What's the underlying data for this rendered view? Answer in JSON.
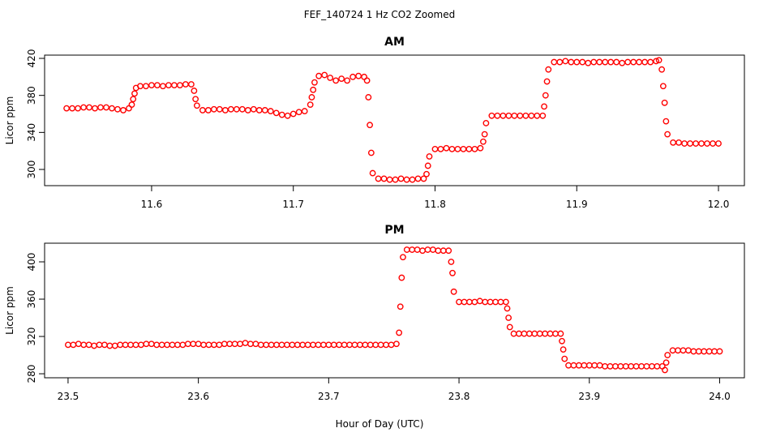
{
  "title": "FEF_140724  1 Hz CO2 Zoomed",
  "x_label": "Hour of Day (UTC)",
  "chart_data": [
    {
      "type": "scatter",
      "title": "AM",
      "y_label": "Licor ppm",
      "color": "#ff0000",
      "xlim": [
        11.5245,
        12.0183
      ],
      "ylim": [
        282.5,
        423.5
      ],
      "xticks": [
        11.6,
        11.7,
        11.8,
        11.9,
        {
          "value": 12,
          "label": "12.0"
        }
      ],
      "yticks": [
        300,
        340,
        380,
        420
      ],
      "x": [
        11.54,
        11.544,
        11.548,
        11.552,
        11.556,
        11.56,
        11.564,
        11.568,
        11.572,
        11.576,
        11.58,
        11.584,
        11.586,
        11.587,
        11.588,
        11.589,
        11.592,
        11.596,
        11.6,
        11.604,
        11.608,
        11.612,
        11.616,
        11.62,
        11.624,
        11.628,
        11.63,
        11.631,
        11.632,
        11.636,
        11.64,
        11.644,
        11.648,
        11.652,
        11.656,
        11.66,
        11.664,
        11.668,
        11.672,
        11.676,
        11.68,
        11.684,
        11.688,
        11.692,
        11.696,
        11.7,
        11.704,
        11.708,
        11.712,
        11.713,
        11.714,
        11.715,
        11.718,
        11.722,
        11.726,
        11.73,
        11.734,
        11.738,
        11.742,
        11.746,
        11.75,
        11.752,
        11.753,
        11.754,
        11.755,
        11.756,
        11.76,
        11.764,
        11.768,
        11.772,
        11.776,
        11.78,
        11.784,
        11.788,
        11.792,
        11.794,
        11.795,
        11.796,
        11.8,
        11.804,
        11.808,
        11.812,
        11.816,
        11.82,
        11.824,
        11.828,
        11.832,
        11.834,
        11.835,
        11.836,
        11.84,
        11.844,
        11.848,
        11.852,
        11.856,
        11.86,
        11.864,
        11.868,
        11.872,
        11.876,
        11.877,
        11.878,
        11.879,
        11.88,
        11.884,
        11.888,
        11.892,
        11.896,
        11.9,
        11.904,
        11.908,
        11.912,
        11.916,
        11.92,
        11.924,
        11.928,
        11.932,
        11.936,
        11.94,
        11.944,
        11.948,
        11.952,
        11.956,
        11.958,
        11.96,
        11.961,
        11.962,
        11.963,
        11.964,
        11.968,
        11.972,
        11.976,
        11.98,
        11.984,
        11.988,
        11.992,
        11.996,
        12.0
      ],
      "values": [
        366,
        366,
        366,
        367,
        367,
        366,
        367,
        367,
        366,
        365,
        364,
        366,
        370,
        376,
        382,
        388,
        390,
        390,
        391,
        391,
        390,
        391,
        391,
        391,
        392,
        392,
        385,
        376,
        369,
        364,
        364,
        365,
        365,
        364,
        365,
        365,
        365,
        364,
        365,
        364,
        364,
        363,
        361,
        359,
        358,
        360,
        362,
        363,
        370,
        378,
        386,
        394,
        401,
        402,
        399,
        396,
        398,
        396,
        400,
        401,
        400,
        396,
        378,
        348,
        318,
        296,
        290,
        290,
        289,
        289,
        290,
        289,
        289,
        290,
        290,
        295,
        304,
        314,
        322,
        322,
        323,
        322,
        322,
        322,
        322,
        322,
        323,
        330,
        338,
        350,
        358,
        358,
        358,
        358,
        358,
        358,
        358,
        358,
        358,
        358,
        368,
        380,
        395,
        408,
        416,
        416,
        417,
        416,
        416,
        416,
        415,
        416,
        416,
        416,
        416,
        416,
        415,
        416,
        416,
        416,
        416,
        416,
        417,
        418,
        408,
        390,
        372,
        352,
        338,
        329,
        329,
        328,
        328,
        328,
        328,
        328,
        328,
        328
      ]
    },
    {
      "type": "scatter",
      "title": "PM",
      "y_label": "Licor ppm",
      "color": "#ff0000",
      "xlim": [
        23.482,
        24.019
      ],
      "ylim": [
        275.7,
        420
      ],
      "xticks": [
        23.5,
        23.6,
        23.7,
        23.8,
        23.9,
        {
          "value": 24,
          "label": "24.0"
        }
      ],
      "yticks": [
        280,
        320,
        360,
        400
      ],
      "x": [
        23.5,
        23.504,
        23.508,
        23.512,
        23.516,
        23.52,
        23.524,
        23.528,
        23.532,
        23.536,
        23.54,
        23.544,
        23.548,
        23.552,
        23.556,
        23.56,
        23.564,
        23.568,
        23.572,
        23.576,
        23.58,
        23.584,
        23.588,
        23.592,
        23.596,
        23.6,
        23.604,
        23.608,
        23.612,
        23.616,
        23.62,
        23.624,
        23.628,
        23.632,
        23.636,
        23.64,
        23.644,
        23.648,
        23.652,
        23.656,
        23.66,
        23.664,
        23.668,
        23.672,
        23.676,
        23.68,
        23.684,
        23.688,
        23.692,
        23.696,
        23.7,
        23.704,
        23.708,
        23.712,
        23.716,
        23.72,
        23.724,
        23.728,
        23.732,
        23.736,
        23.74,
        23.744,
        23.748,
        23.752,
        23.754,
        23.755,
        23.756,
        23.757,
        23.76,
        23.764,
        23.768,
        23.772,
        23.776,
        23.78,
        23.784,
        23.788,
        23.792,
        23.794,
        23.795,
        23.796,
        23.8,
        23.804,
        23.808,
        23.812,
        23.816,
        23.82,
        23.824,
        23.828,
        23.832,
        23.836,
        23.837,
        23.838,
        23.839,
        23.842,
        23.846,
        23.85,
        23.854,
        23.858,
        23.862,
        23.866,
        23.87,
        23.874,
        23.878,
        23.879,
        23.88,
        23.881,
        23.884,
        23.888,
        23.892,
        23.896,
        23.9,
        23.904,
        23.908,
        23.912,
        23.916,
        23.92,
        23.924,
        23.928,
        23.932,
        23.936,
        23.94,
        23.944,
        23.948,
        23.952,
        23.956,
        23.958,
        23.959,
        23.96,
        23.964,
        23.968,
        23.972,
        23.976,
        23.98,
        23.984,
        23.988,
        23.992,
        23.996,
        24.0
      ],
      "values": [
        311,
        311,
        312,
        311,
        311,
        310,
        311,
        311,
        310,
        310,
        311,
        311,
        311,
        311,
        311,
        312,
        312,
        311,
        311,
        311,
        311,
        311,
        311,
        312,
        312,
        312,
        311,
        311,
        311,
        311,
        312,
        312,
        312,
        312,
        313,
        312,
        312,
        311,
        311,
        311,
        311,
        311,
        311,
        311,
        311,
        311,
        311,
        311,
        311,
        311,
        311,
        311,
        311,
        311,
        311,
        311,
        311,
        311,
        311,
        311,
        311,
        311,
        311,
        312,
        324,
        352,
        383,
        405,
        413,
        413,
        413,
        412,
        413,
        413,
        412,
        412,
        412,
        400,
        388,
        368,
        357,
        357,
        357,
        357,
        358,
        357,
        357,
        357,
        357,
        357,
        350,
        340,
        330,
        323,
        323,
        323,
        323,
        323,
        323,
        323,
        323,
        323,
        323,
        315,
        306,
        296,
        289,
        289,
        289,
        289,
        289,
        289,
        289,
        288,
        288,
        288,
        288,
        288,
        288,
        288,
        288,
        288,
        288,
        288,
        288,
        284,
        292,
        300,
        305,
        305,
        305,
        305,
        304,
        304,
        304,
        304,
        304,
        304
      ]
    }
  ]
}
